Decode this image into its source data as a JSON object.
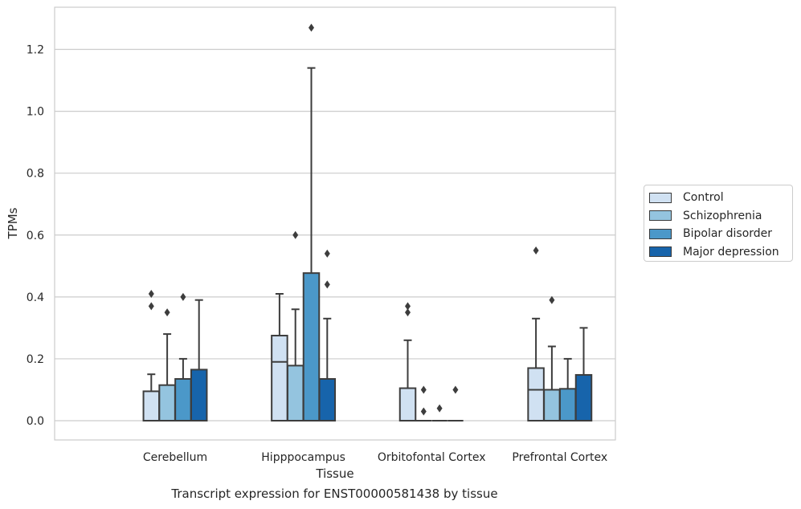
{
  "chart_data": {
    "type": "box",
    "xlabel": "Tissue",
    "ylabel": "TPMs",
    "caption": "Transcript expression for ENST00000581438 by tissue",
    "ylim": [
      -0.06,
      1.34
    ],
    "yticks": [
      0.0,
      0.2,
      0.4,
      0.6,
      0.8,
      1.0,
      1.2
    ],
    "ytick_labels": [
      "0.0",
      "0.2",
      "0.4",
      "0.6",
      "0.8",
      "1.0",
      "1.2"
    ],
    "grid": "horizontal",
    "legend_position": "right",
    "categories": [
      "Cerebellum",
      "Hipppocampus",
      "Orbitofontal Cortex",
      "Prefrontal Cortex"
    ],
    "series": [
      {
        "name": "Control",
        "color": "#d0e1f2",
        "boxes": [
          {
            "q1": 0.0,
            "median": 0.0,
            "q3": 0.095,
            "whisker_low": 0.0,
            "whisker_high": 0.15,
            "outliers": [
              0.37,
              0.41
            ]
          },
          {
            "q1": 0.0,
            "median": 0.19,
            "q3": 0.275,
            "whisker_low": 0.0,
            "whisker_high": 0.41,
            "outliers": []
          },
          {
            "q1": 0.0,
            "median": 0.0,
            "q3": 0.105,
            "whisker_low": 0.0,
            "whisker_high": 0.26,
            "outliers": [
              0.35,
              0.37
            ]
          },
          {
            "q1": 0.0,
            "median": 0.1,
            "q3": 0.17,
            "whisker_low": 0.0,
            "whisker_high": 0.33,
            "outliers": [
              0.55
            ]
          }
        ]
      },
      {
        "name": "Schizophrenia",
        "color": "#94c4df",
        "boxes": [
          {
            "q1": 0.0,
            "median": 0.0,
            "q3": 0.115,
            "whisker_low": 0.0,
            "whisker_high": 0.28,
            "outliers": [
              0.35
            ]
          },
          {
            "q1": 0.0,
            "median": 0.0,
            "q3": 0.178,
            "whisker_low": 0.0,
            "whisker_high": 0.36,
            "outliers": [
              0.6
            ]
          },
          {
            "q1": 0.0,
            "median": 0.0,
            "q3": 0.0,
            "whisker_low": 0.0,
            "whisker_high": 0.0,
            "outliers": [
              0.03,
              0.1
            ]
          },
          {
            "q1": 0.0,
            "median": 0.0,
            "q3": 0.1,
            "whisker_low": 0.0,
            "whisker_high": 0.24,
            "outliers": [
              0.39
            ]
          }
        ]
      },
      {
        "name": "Bipolar disorder",
        "color": "#4b98c9",
        "boxes": [
          {
            "q1": 0.0,
            "median": 0.0,
            "q3": 0.135,
            "whisker_low": 0.0,
            "whisker_high": 0.2,
            "outliers": [
              0.4
            ]
          },
          {
            "q1": 0.0,
            "median": 0.0,
            "q3": 0.477,
            "whisker_low": 0.0,
            "whisker_high": 1.14,
            "outliers": [
              1.27
            ]
          },
          {
            "q1": 0.0,
            "median": 0.0,
            "q3": 0.0,
            "whisker_low": 0.0,
            "whisker_high": 0.0,
            "outliers": [
              0.04
            ]
          },
          {
            "q1": 0.0,
            "median": 0.0,
            "q3": 0.103,
            "whisker_low": 0.0,
            "whisker_high": 0.2,
            "outliers": []
          }
        ]
      },
      {
        "name": "Major depression",
        "color": "#1764ab",
        "boxes": [
          {
            "q1": 0.0,
            "median": 0.0,
            "q3": 0.165,
            "whisker_low": 0.0,
            "whisker_high": 0.39,
            "outliers": []
          },
          {
            "q1": 0.0,
            "median": 0.0,
            "q3": 0.135,
            "whisker_low": 0.0,
            "whisker_high": 0.33,
            "outliers": [
              0.44,
              0.54
            ]
          },
          {
            "q1": 0.0,
            "median": 0.0,
            "q3": 0.0,
            "whisker_low": 0.0,
            "whisker_high": 0.0,
            "outliers": [
              0.1
            ]
          },
          {
            "q1": 0.0,
            "median": 0.0,
            "q3": 0.148,
            "whisker_low": 0.0,
            "whisker_high": 0.3,
            "outliers": []
          }
        ]
      }
    ]
  }
}
